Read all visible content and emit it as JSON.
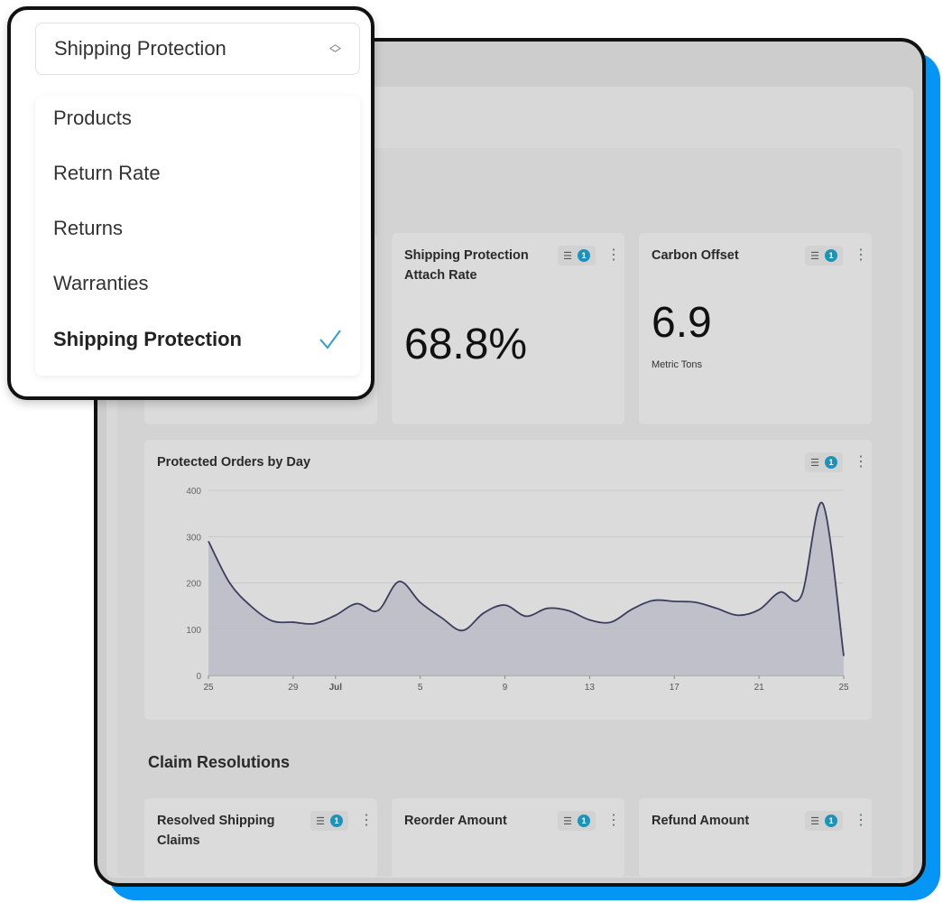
{
  "dropdown": {
    "selected": "Shipping Protection",
    "options": [
      "Products",
      "Return Rate",
      "Returns",
      "Warranties",
      "Shipping Protection"
    ],
    "check_color": "#2d9cdb"
  },
  "cards": {
    "attach_rate": {
      "title": "Shipping Protection Attach Rate",
      "value": "68.8%",
      "filter_count": "1"
    },
    "carbon_offset": {
      "title": "Carbon Offset",
      "value": "6.9",
      "unit": "Metric Tons",
      "filter_count": "1"
    },
    "chart": {
      "title": "Protected Orders by Day",
      "filter_count": "1"
    }
  },
  "claims": {
    "section_title": "Claim Resolutions",
    "cards": [
      {
        "title": "Resolved Shipping Claims",
        "filter_count": "1"
      },
      {
        "title": "Reorder Amount",
        "filter_count": "1"
      },
      {
        "title": "Refund Amount",
        "filter_count": "1"
      }
    ]
  },
  "colors": {
    "accent_blue": "#0596f5",
    "badge": "#1c93b8",
    "line": "#3a3d5c",
    "area": "#bcbdc8"
  },
  "chart_data": {
    "type": "area",
    "title": "Protected Orders by Day",
    "x": [
      "Jun 25",
      "Jun 26",
      "Jun 27",
      "Jun 28",
      "Jun 29",
      "Jun 30",
      "Jul 1",
      "Jul 2",
      "Jul 3",
      "Jul 4",
      "Jul 5",
      "Jul 6",
      "Jul 7",
      "Jul 8",
      "Jul 9",
      "Jul 10",
      "Jul 11",
      "Jul 12",
      "Jul 13",
      "Jul 14",
      "Jul 15",
      "Jul 16",
      "Jul 17",
      "Jul 18",
      "Jul 19",
      "Jul 20",
      "Jul 21",
      "Jul 22",
      "Jul 23",
      "Jul 24",
      "Jul 25"
    ],
    "values": [
      290,
      200,
      150,
      118,
      115,
      112,
      130,
      155,
      140,
      203,
      158,
      125,
      97,
      135,
      152,
      128,
      145,
      140,
      120,
      115,
      143,
      162,
      160,
      158,
      145,
      130,
      142,
      180,
      172,
      372,
      42
    ],
    "ylim": [
      0,
      400
    ],
    "yticks": [
      "0",
      "100",
      "200",
      "300",
      "400"
    ],
    "xticks": [
      {
        "label": "25",
        "index": 0
      },
      {
        "label": "29",
        "index": 4
      },
      {
        "label": "Jul",
        "index": 6
      },
      {
        "label": "5",
        "index": 10
      },
      {
        "label": "9",
        "index": 14
      },
      {
        "label": "13",
        "index": 18
      },
      {
        "label": "17",
        "index": 22
      },
      {
        "label": "21",
        "index": 26
      },
      {
        "label": "25",
        "index": 30
      }
    ],
    "grid": true
  }
}
